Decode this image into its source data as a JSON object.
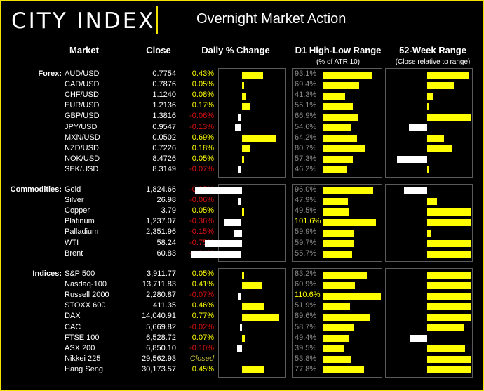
{
  "header": {
    "logo": "CITY INDEX",
    "title": "Overnight Market Action"
  },
  "columns": {
    "market": "Market",
    "close": "Close",
    "daily_change": "Daily % Change",
    "d1_range": "D1 High-Low Range",
    "d1_range_sub": "(% of ATR 10)",
    "week52": "52-Week Range",
    "week52_sub": "(Close relative to range)"
  },
  "colors": {
    "accent": "#f3e100",
    "bar_positive": "#ffff00",
    "bar_negative": "#ffffff",
    "text_positive": "#ffff00",
    "text_negative": "#e01010",
    "text_muted": "#8c8c8c",
    "text_closed": "#bdb63a"
  },
  "chart_data": {
    "type": "table",
    "groups": [
      {
        "name": "Forex:",
        "rows": [
          {
            "market": "AUD/USD",
            "close": "0.7754",
            "change": 0.43,
            "change_label": "0.43%",
            "range": 93.1,
            "range_label": "93.1%",
            "week52": 0.95
          },
          {
            "market": "CAD/USD",
            "close": "0.7876",
            "change": 0.05,
            "change_label": "0.05%",
            "range": 69.4,
            "range_label": "69.4%",
            "week52": 0.6
          },
          {
            "market": "CHF/USD",
            "close": "1.1240",
            "change": 0.08,
            "change_label": "0.08%",
            "range": 41.3,
            "range_label": "41.3%",
            "week52": 0.15
          },
          {
            "market": "EUR/USD",
            "close": "1.2136",
            "change": 0.17,
            "change_label": "0.17%",
            "range": 56.1,
            "range_label": "56.1%",
            "week52": 0.01
          },
          {
            "market": "GBP/USD",
            "close": "1.3816",
            "change": -0.06,
            "change_label": "-0.06%",
            "range": 66.9,
            "range_label": "66.9%",
            "week52": 1.0
          },
          {
            "market": "JPY/USD",
            "close": "0.9547",
            "change": -0.13,
            "change_label": "-0.13%",
            "range": 54.6,
            "range_label": "54.6%",
            "week52": -0.42
          },
          {
            "market": "MXN/USD",
            "close": "0.0502",
            "change": 0.69,
            "change_label": "0.69%",
            "range": 64.2,
            "range_label": "64.2%",
            "week52": 0.38
          },
          {
            "market": "NZD/USD",
            "close": "0.7226",
            "change": 0.18,
            "change_label": "0.18%",
            "range": 80.7,
            "range_label": "80.7%",
            "week52": 0.56
          },
          {
            "market": "NOK/USD",
            "close": "8.4726",
            "change": 0.05,
            "change_label": "0.05%",
            "range": 57.3,
            "range_label": "57.3%",
            "week52": -0.68
          },
          {
            "market": "SEK/USD",
            "close": "8.3149",
            "change": -0.07,
            "change_label": "-0.07%",
            "range": 46.2,
            "range_label": "46.2%",
            "week52": 0.0
          }
        ]
      },
      {
        "name": "Commodities:",
        "rows": [
          {
            "market": "Gold",
            "close": "1,824.66",
            "change": -0.95,
            "change_label": "-0.95%",
            "range": 96.0,
            "range_label": "96.0%",
            "week52": -0.52
          },
          {
            "market": "Silver",
            "close": "26.98",
            "change": -0.06,
            "change_label": "-0.06%",
            "range": 47.9,
            "range_label": "47.9%",
            "week52": 0.23
          },
          {
            "market": "Copper",
            "close": "3.79",
            "change": 0.05,
            "change_label": "0.05%",
            "range": 49.5,
            "range_label": "49.5%",
            "week52": 1.0
          },
          {
            "market": "Platinum",
            "close": "1,237.07",
            "change": -0.36,
            "change_label": "-0.36%",
            "range": 101.6,
            "range_label": "101.6%",
            "week52": 1.0
          },
          {
            "market": "Palladium",
            "close": "2,351.96",
            "change": -0.15,
            "change_label": "-0.15%",
            "range": 59.9,
            "range_label": "59.9%",
            "week52": 0.08
          },
          {
            "market": "WTI",
            "close": "58.24",
            "change": -0.75,
            "change_label": "-0.75%",
            "range": 59.7,
            "range_label": "59.7%",
            "week52": 1.0
          },
          {
            "market": "Brent",
            "close": "60.83",
            "change": -1.04,
            "change_label": "-1.04%",
            "range": 55.7,
            "range_label": "55.7%",
            "week52": 1.0
          }
        ]
      },
      {
        "name": "Indices:",
        "rows": [
          {
            "market": "S&P 500",
            "close": "3,911.77",
            "change": 0.05,
            "change_label": "0.05%",
            "range": 83.2,
            "range_label": "83.2%",
            "week52": 1.0
          },
          {
            "market": "Nasdaq-100",
            "close": "13,711.83",
            "change": 0.41,
            "change_label": "0.41%",
            "range": 60.9,
            "range_label": "60.9%",
            "week52": 1.0
          },
          {
            "market": "Russell 2000",
            "close": "2,280.87",
            "change": -0.07,
            "change_label": "-0.07%",
            "range": 110.6,
            "range_label": "110.6%",
            "week52": 1.0
          },
          {
            "market": "STOXX 600",
            "close": "411.35",
            "change": 0.46,
            "change_label": "0.46%",
            "range": 51.9,
            "range_label": "51.9%",
            "week52": 1.0
          },
          {
            "market": "DAX",
            "close": "14,040.91",
            "change": 0.77,
            "change_label": "0.77%",
            "range": 89.6,
            "range_label": "89.6%",
            "week52": 1.0
          },
          {
            "market": "CAC",
            "close": "5,669.82",
            "change": -0.02,
            "change_label": "-0.02%",
            "range": 58.7,
            "range_label": "58.7%",
            "week52": 0.82
          },
          {
            "market": "FTSE 100",
            "close": "6,528.72",
            "change": 0.07,
            "change_label": "0.07%",
            "range": 49.4,
            "range_label": "49.4%",
            "week52": -0.38
          },
          {
            "market": "ASX 200",
            "close": "6,850.10",
            "change": -0.1,
            "change_label": "-0.10%",
            "range": 39.5,
            "range_label": "39.5%",
            "week52": 0.85
          },
          {
            "market": "Nikkei 225",
            "close": "29,562.93",
            "change": null,
            "change_label": "Closed",
            "range": 53.8,
            "range_label": "53.8%",
            "week52": 1.0
          },
          {
            "market": "Hang Seng",
            "close": "30,173.57",
            "change": 0.45,
            "change_label": "0.45%",
            "range": 77.8,
            "range_label": "77.8%",
            "week52": 1.0
          }
        ]
      }
    ]
  }
}
